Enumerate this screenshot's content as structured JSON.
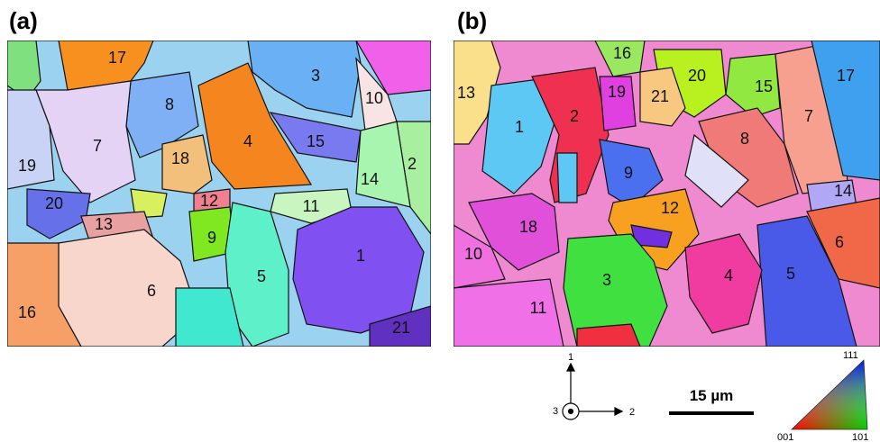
{
  "panels": [
    {
      "label": "(a)",
      "grains": [
        "17",
        "8",
        "3",
        "10",
        "7",
        "4",
        "15",
        "19",
        "18",
        "14",
        "2",
        "20",
        "12",
        "11",
        "13",
        "9",
        "1",
        "5",
        "6",
        "16",
        "21"
      ]
    },
    {
      "label": "(b)",
      "grains": [
        "16",
        "20",
        "15",
        "17",
        "13",
        "19",
        "21",
        "2",
        "7",
        "1",
        "8",
        "9",
        "14",
        "12",
        "18",
        "6",
        "10",
        "4",
        "5",
        "3",
        "11"
      ]
    }
  ],
  "axes": {
    "up": "1",
    "right": "2",
    "out": "3"
  },
  "scale_bar": "15 µm",
  "ipf": {
    "top": "111",
    "left": "001",
    "right": "101"
  }
}
